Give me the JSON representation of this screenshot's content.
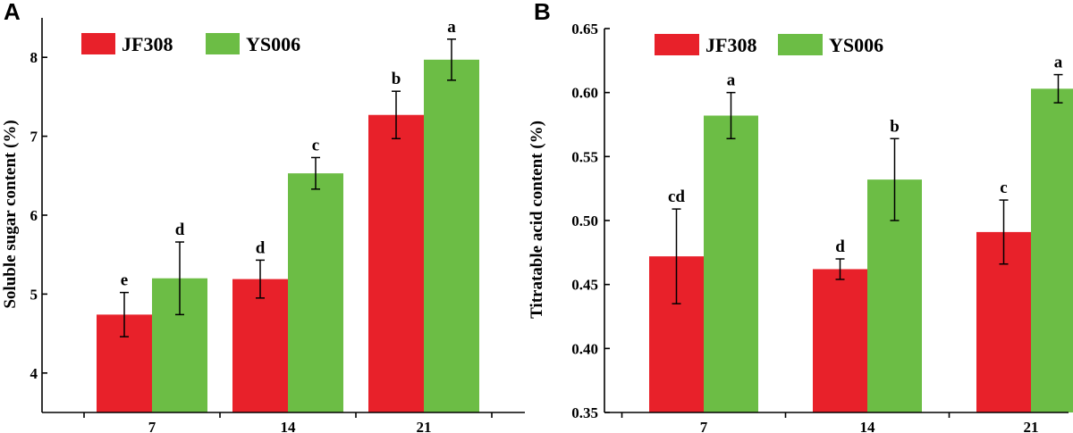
{
  "colors": {
    "JF308": "#e8212a",
    "YS006": "#6cbd45"
  },
  "chart_data": [
    {
      "panel": "A",
      "type": "bar",
      "title": "",
      "xlabel": "",
      "ylabel": "Soluble sugar content (%)",
      "categories": [
        "7",
        "14",
        "21"
      ],
      "ylim": [
        3.5,
        8.5
      ],
      "yticks": [
        "4",
        "5",
        "6",
        "7",
        "8"
      ],
      "legend_position": "top-left",
      "series": [
        {
          "name": "JF308",
          "values": [
            4.74,
            5.19,
            7.27
          ],
          "errors": [
            0.28,
            0.24,
            0.3
          ],
          "labels": [
            "e",
            "d",
            "b"
          ]
        },
        {
          "name": "YS006",
          "values": [
            5.2,
            6.53,
            7.97
          ],
          "errors": [
            0.46,
            0.2,
            0.26
          ],
          "labels": [
            "d",
            "c",
            "a"
          ]
        }
      ]
    },
    {
      "panel": "B",
      "type": "bar",
      "title": "",
      "xlabel": "",
      "ylabel": "Titratable acid content (%)",
      "categories": [
        "7",
        "14",
        "21"
      ],
      "ylim": [
        0.35,
        0.65
      ],
      "yticks": [
        "0.35",
        "0.40",
        "0.45",
        "0.50",
        "0.55",
        "0.60",
        "0.65"
      ],
      "legend_position": "top-left",
      "series": [
        {
          "name": "JF308",
          "values": [
            0.472,
            0.462,
            0.491
          ],
          "errors": [
            0.037,
            0.008,
            0.025
          ],
          "labels": [
            "cd",
            "d",
            "c"
          ]
        },
        {
          "name": "YS006",
          "values": [
            0.582,
            0.532,
            0.603
          ],
          "errors": [
            0.018,
            0.032,
            0.011
          ],
          "labels": [
            "a",
            "b",
            "a"
          ]
        }
      ]
    }
  ]
}
